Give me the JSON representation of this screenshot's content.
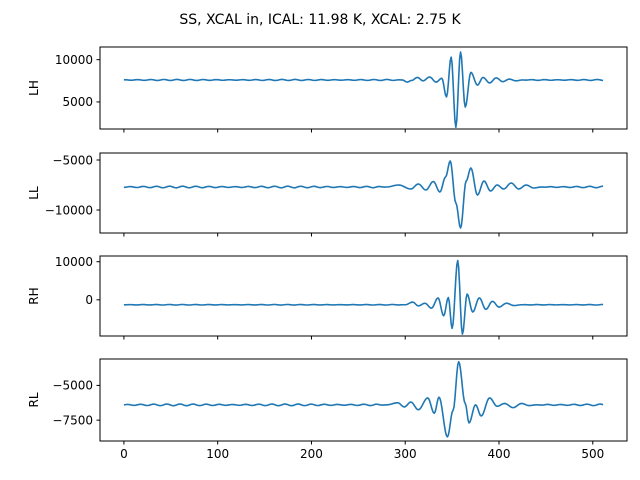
{
  "chart_data": {
    "type": "line",
    "suptitle": "SS, XCAL in, ICAL: 11.98 K, XCAL: 2.75 K",
    "color": "#1f77b4",
    "x_ticks": [
      0,
      100,
      200,
      300,
      400,
      500
    ],
    "x_tick_labels": [
      "0",
      "100",
      "200",
      "300",
      "400",
      "500"
    ],
    "xlim": [
      -25.5,
      536.5
    ],
    "x_start": 0,
    "x_end": 511,
    "grid": false,
    "panels": [
      {
        "ylabel": "LH",
        "ylim": [
          1800,
          11500
        ],
        "y_ticks": [
          10000,
          5000
        ],
        "y_tick_labels": [
          "10000",
          "5000"
        ],
        "baseline": 7600,
        "ripple": 60,
        "features": [
          {
            "x": 297,
            "v": 7600
          },
          {
            "x": 302,
            "v": 7350
          },
          {
            "x": 307,
            "v": 7550
          },
          {
            "x": 313,
            "v": 7900
          },
          {
            "x": 319,
            "v": 7500
          },
          {
            "x": 326,
            "v": 7950
          },
          {
            "x": 333,
            "v": 7350
          },
          {
            "x": 339,
            "v": 7800
          },
          {
            "x": 344,
            "v": 5600
          },
          {
            "x": 349,
            "v": 10300
          },
          {
            "x": 354,
            "v": 2000
          },
          {
            "x": 359,
            "v": 10900
          },
          {
            "x": 364,
            "v": 4400
          },
          {
            "x": 370,
            "v": 8500
          },
          {
            "x": 377,
            "v": 7000
          },
          {
            "x": 383,
            "v": 7900
          },
          {
            "x": 390,
            "v": 7250
          },
          {
            "x": 397,
            "v": 7850
          },
          {
            "x": 404,
            "v": 7400
          },
          {
            "x": 411,
            "v": 7700
          },
          {
            "x": 418,
            "v": 7500
          },
          {
            "x": 425,
            "v": 7600
          }
        ]
      },
      {
        "ylabel": "LL",
        "ylim": [
          -12300,
          -4300
        ],
        "y_ticks": [
          -5000,
          -10000
        ],
        "y_tick_labels": [
          "−5000",
          "−10000"
        ],
        "baseline": -7700,
        "ripple": 80,
        "features": [
          {
            "x": 280,
            "v": -7700
          },
          {
            "x": 293,
            "v": -7500
          },
          {
            "x": 306,
            "v": -7900
          },
          {
            "x": 314,
            "v": -7400
          },
          {
            "x": 322,
            "v": -8000
          },
          {
            "x": 330,
            "v": -7150
          },
          {
            "x": 337,
            "v": -8200
          },
          {
            "x": 343,
            "v": -6700
          },
          {
            "x": 348,
            "v": -5100
          },
          {
            "x": 354,
            "v": -9300
          },
          {
            "x": 359,
            "v": -11800
          },
          {
            "x": 365,
            "v": -7100
          },
          {
            "x": 370,
            "v": -5800
          },
          {
            "x": 377,
            "v": -8500
          },
          {
            "x": 384,
            "v": -7100
          },
          {
            "x": 391,
            "v": -8100
          },
          {
            "x": 398,
            "v": -7500
          },
          {
            "x": 405,
            "v": -7900
          },
          {
            "x": 413,
            "v": -7300
          },
          {
            "x": 421,
            "v": -7900
          },
          {
            "x": 429,
            "v": -7500
          },
          {
            "x": 437,
            "v": -7800
          },
          {
            "x": 445,
            "v": -7700
          }
        ]
      },
      {
        "ylabel": "RH",
        "ylim": [
          -9500,
          11500
        ],
        "y_ticks": [
          10000,
          0
        ],
        "y_tick_labels": [
          "10000",
          "0"
        ],
        "baseline": -1300,
        "ripple": 70,
        "features": [
          {
            "x": 300,
            "v": -1300
          },
          {
            "x": 308,
            "v": -600
          },
          {
            "x": 314,
            "v": -1600
          },
          {
            "x": 321,
            "v": -900
          },
          {
            "x": 328,
            "v": -2200
          },
          {
            "x": 335,
            "v": 500
          },
          {
            "x": 341,
            "v": -4200
          },
          {
            "x": 346,
            "v": 600
          },
          {
            "x": 350,
            "v": -7500
          },
          {
            "x": 356,
            "v": 10300
          },
          {
            "x": 361,
            "v": -9000
          },
          {
            "x": 366,
            "v": 1500
          },
          {
            "x": 372,
            "v": -3200
          },
          {
            "x": 379,
            "v": 500
          },
          {
            "x": 386,
            "v": -2500
          },
          {
            "x": 393,
            "v": -400
          },
          {
            "x": 400,
            "v": -1900
          },
          {
            "x": 408,
            "v": -900
          },
          {
            "x": 416,
            "v": -1500
          },
          {
            "x": 424,
            "v": -1300
          }
        ]
      },
      {
        "ylabel": "RL",
        "ylim": [
          -9000,
          -3100
        ],
        "y_ticks": [
          -5000,
          -7500
        ],
        "y_tick_labels": [
          "−5000",
          "−7500"
        ],
        "baseline": -6400,
        "ripple": 60,
        "features": [
          {
            "x": 280,
            "v": -6400
          },
          {
            "x": 292,
            "v": -6250
          },
          {
            "x": 299,
            "v": -6550
          },
          {
            "x": 306,
            "v": -6200
          },
          {
            "x": 314,
            "v": -6750
          },
          {
            "x": 324,
            "v": -5900
          },
          {
            "x": 331,
            "v": -7000
          },
          {
            "x": 336,
            "v": -5850
          },
          {
            "x": 345,
            "v": -8700
          },
          {
            "x": 351,
            "v": -6800
          },
          {
            "x": 357,
            "v": -3300
          },
          {
            "x": 364,
            "v": -6300
          },
          {
            "x": 368,
            "v": -7700
          },
          {
            "x": 375,
            "v": -6400
          },
          {
            "x": 381,
            "v": -7200
          },
          {
            "x": 390,
            "v": -5900
          },
          {
            "x": 398,
            "v": -6500
          },
          {
            "x": 406,
            "v": -6300
          },
          {
            "x": 415,
            "v": -6600
          },
          {
            "x": 424,
            "v": -6300
          },
          {
            "x": 432,
            "v": -6450
          },
          {
            "x": 440,
            "v": -6400
          }
        ]
      }
    ]
  }
}
